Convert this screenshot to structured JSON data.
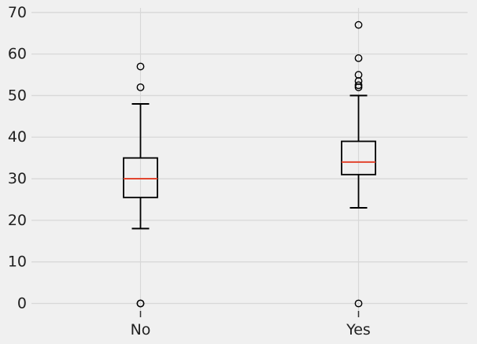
{
  "chart_data": {
    "type": "boxplot",
    "title": "",
    "xlabel": "",
    "ylabel": "",
    "categories": [
      "No",
      "Yes"
    ],
    "series": [
      {
        "category": "No",
        "whisker_low": 18,
        "q1": 25.5,
        "median": 30,
        "q3": 35,
        "whisker_high": 48,
        "outliers": [
          57,
          52,
          0,
          0
        ]
      },
      {
        "category": "Yes",
        "whisker_low": 23,
        "q1": 31,
        "median": 34,
        "q3": 39,
        "whisker_high": 50,
        "outliers": [
          67,
          59,
          55,
          53.5,
          52.5,
          52,
          0
        ]
      }
    ],
    "yticks": [
      0,
      10,
      20,
      30,
      40,
      50,
      60,
      70
    ],
    "ylim": [
      -1.8,
      71.1
    ],
    "grid": true,
    "legend": null,
    "colors": {
      "background": "#f0f0f0",
      "gridline": "#d8d8d8",
      "box_edge": "#000000",
      "median": "#e2462f",
      "tick_label": "#212121",
      "tick_mark": "#333333"
    }
  }
}
